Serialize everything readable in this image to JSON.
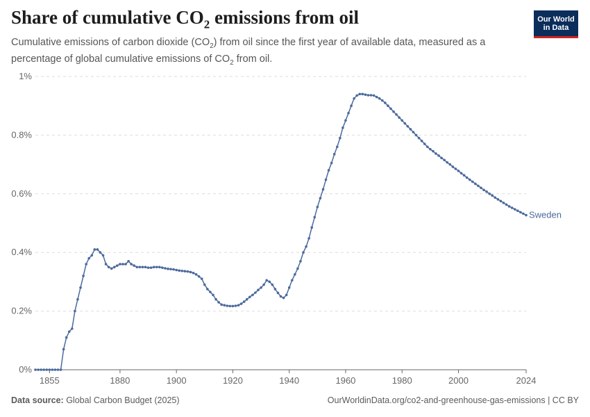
{
  "header": {
    "title_main": "Share of cumulative CO",
    "title_sub": "2",
    "title_end": " emissions from oil",
    "subtitle_a": "Cumulative emissions of carbon dioxide (CO",
    "subtitle_sub1": "2",
    "subtitle_b": ") from oil since the first year of available data, measured as a percentage of global cumulative emissions of CO",
    "subtitle_sub2": "2",
    "subtitle_c": " from oil."
  },
  "logo": {
    "line1": "Our World",
    "line2": "in Data"
  },
  "footer": {
    "source_label": "Data source:",
    "source_value": " Global Carbon Budget (2025)",
    "url": "OurWorldinData.org/co2-and-greenhouse-gas-emissions | CC BY"
  },
  "colors": {
    "series": "#4c6a9c",
    "grid": "#dddddd",
    "axis": "#666666",
    "text": "#666666"
  },
  "chart_data": {
    "type": "line",
    "xlim": [
      1850,
      2024
    ],
    "ylim": [
      0,
      1
    ],
    "x_ticks": [
      1855,
      1880,
      1900,
      1920,
      1940,
      1960,
      1980,
      2000,
      2024
    ],
    "y_ticks": [
      {
        "value": 0,
        "label": "0%"
      },
      {
        "value": 0.2,
        "label": "0.2%"
      },
      {
        "value": 0.4,
        "label": "0.4%"
      },
      {
        "value": 0.6,
        "label": "0.6%"
      },
      {
        "value": 0.8,
        "label": "0.8%"
      },
      {
        "value": 1,
        "label": "1%"
      }
    ],
    "grid": "horizontal dashed",
    "series": [
      {
        "name": "Sweden",
        "points": [
          [
            1850,
            0
          ],
          [
            1851,
            0
          ],
          [
            1852,
            0
          ],
          [
            1853,
            0
          ],
          [
            1854,
            0
          ],
          [
            1855,
            0
          ],
          [
            1856,
            0
          ],
          [
            1857,
            0
          ],
          [
            1858,
            0
          ],
          [
            1859,
            0
          ],
          [
            1860,
            0.07
          ],
          [
            1861,
            0.11
          ],
          [
            1862,
            0.13
          ],
          [
            1863,
            0.14
          ],
          [
            1864,
            0.2
          ],
          [
            1865,
            0.24
          ],
          [
            1866,
            0.28
          ],
          [
            1867,
            0.32
          ],
          [
            1868,
            0.36
          ],
          [
            1869,
            0.38
          ],
          [
            1870,
            0.39
          ],
          [
            1871,
            0.41
          ],
          [
            1872,
            0.41
          ],
          [
            1873,
            0.4
          ],
          [
            1874,
            0.39
          ],
          [
            1875,
            0.36
          ],
          [
            1876,
            0.35
          ],
          [
            1877,
            0.345
          ],
          [
            1878,
            0.35
          ],
          [
            1879,
            0.355
          ],
          [
            1880,
            0.36
          ],
          [
            1881,
            0.36
          ],
          [
            1882,
            0.36
          ],
          [
            1883,
            0.37
          ],
          [
            1884,
            0.36
          ],
          [
            1885,
            0.355
          ],
          [
            1886,
            0.35
          ],
          [
            1887,
            0.35
          ],
          [
            1888,
            0.35
          ],
          [
            1889,
            0.35
          ],
          [
            1890,
            0.348
          ],
          [
            1891,
            0.348
          ],
          [
            1892,
            0.35
          ],
          [
            1893,
            0.35
          ],
          [
            1894,
            0.35
          ],
          [
            1895,
            0.348
          ],
          [
            1896,
            0.346
          ],
          [
            1897,
            0.344
          ],
          [
            1898,
            0.343
          ],
          [
            1899,
            0.342
          ],
          [
            1900,
            0.34
          ],
          [
            1901,
            0.338
          ],
          [
            1902,
            0.337
          ],
          [
            1903,
            0.336
          ],
          [
            1904,
            0.335
          ],
          [
            1905,
            0.333
          ],
          [
            1906,
            0.33
          ],
          [
            1907,
            0.325
          ],
          [
            1908,
            0.318
          ],
          [
            1909,
            0.31
          ],
          [
            1910,
            0.29
          ],
          [
            1911,
            0.275
          ],
          [
            1912,
            0.265
          ],
          [
            1913,
            0.255
          ],
          [
            1914,
            0.24
          ],
          [
            1915,
            0.23
          ],
          [
            1916,
            0.222
          ],
          [
            1917,
            0.22
          ],
          [
            1918,
            0.218
          ],
          [
            1919,
            0.217
          ],
          [
            1920,
            0.217
          ],
          [
            1921,
            0.218
          ],
          [
            1922,
            0.22
          ],
          [
            1923,
            0.225
          ],
          [
            1924,
            0.232
          ],
          [
            1925,
            0.24
          ],
          [
            1926,
            0.248
          ],
          [
            1927,
            0.255
          ],
          [
            1928,
            0.263
          ],
          [
            1929,
            0.272
          ],
          [
            1930,
            0.28
          ],
          [
            1931,
            0.29
          ],
          [
            1932,
            0.305
          ],
          [
            1933,
            0.3
          ],
          [
            1934,
            0.29
          ],
          [
            1935,
            0.275
          ],
          [
            1936,
            0.262
          ],
          [
            1937,
            0.25
          ],
          [
            1938,
            0.245
          ],
          [
            1939,
            0.255
          ],
          [
            1940,
            0.28
          ],
          [
            1941,
            0.305
          ],
          [
            1942,
            0.325
          ],
          [
            1943,
            0.345
          ],
          [
            1944,
            0.37
          ],
          [
            1945,
            0.4
          ],
          [
            1946,
            0.42
          ],
          [
            1947,
            0.448
          ],
          [
            1948,
            0.485
          ],
          [
            1949,
            0.52
          ],
          [
            1950,
            0.555
          ],
          [
            1951,
            0.585
          ],
          [
            1952,
            0.615
          ],
          [
            1953,
            0.648
          ],
          [
            1954,
            0.68
          ],
          [
            1955,
            0.705
          ],
          [
            1956,
            0.735
          ],
          [
            1957,
            0.76
          ],
          [
            1958,
            0.79
          ],
          [
            1959,
            0.825
          ],
          [
            1960,
            0.85
          ],
          [
            1961,
            0.875
          ],
          [
            1962,
            0.9
          ],
          [
            1963,
            0.925
          ],
          [
            1964,
            0.935
          ],
          [
            1965,
            0.94
          ],
          [
            1966,
            0.94
          ],
          [
            1967,
            0.938
          ],
          [
            1968,
            0.936
          ],
          [
            1969,
            0.936
          ],
          [
            1970,
            0.935
          ],
          [
            1971,
            0.93
          ],
          [
            1972,
            0.925
          ],
          [
            1973,
            0.918
          ],
          [
            1974,
            0.91
          ],
          [
            1975,
            0.9
          ],
          [
            1976,
            0.89
          ],
          [
            1977,
            0.88
          ],
          [
            1978,
            0.87
          ],
          [
            1979,
            0.86
          ],
          [
            1980,
            0.85
          ],
          [
            1981,
            0.84
          ],
          [
            1982,
            0.83
          ],
          [
            1983,
            0.82
          ],
          [
            1984,
            0.81
          ],
          [
            1985,
            0.8
          ],
          [
            1986,
            0.79
          ],
          [
            1987,
            0.78
          ],
          [
            1988,
            0.77
          ],
          [
            1989,
            0.76
          ],
          [
            1990,
            0.752
          ],
          [
            1991,
            0.745
          ],
          [
            1992,
            0.737
          ],
          [
            1993,
            0.73
          ],
          [
            1994,
            0.722
          ],
          [
            1995,
            0.715
          ],
          [
            1996,
            0.707
          ],
          [
            1997,
            0.7
          ],
          [
            1998,
            0.692
          ],
          [
            1999,
            0.685
          ],
          [
            2000,
            0.678
          ],
          [
            2001,
            0.67
          ],
          [
            2002,
            0.663
          ],
          [
            2003,
            0.655
          ],
          [
            2004,
            0.648
          ],
          [
            2005,
            0.641
          ],
          [
            2006,
            0.634
          ],
          [
            2007,
            0.627
          ],
          [
            2008,
            0.62
          ],
          [
            2009,
            0.613
          ],
          [
            2010,
            0.607
          ],
          [
            2011,
            0.6
          ],
          [
            2012,
            0.594
          ],
          [
            2013,
            0.587
          ],
          [
            2014,
            0.581
          ],
          [
            2015,
            0.575
          ],
          [
            2016,
            0.569
          ],
          [
            2017,
            0.563
          ],
          [
            2018,
            0.557
          ],
          [
            2019,
            0.552
          ],
          [
            2020,
            0.547
          ],
          [
            2021,
            0.542
          ],
          [
            2022,
            0.537
          ],
          [
            2023,
            0.532
          ],
          [
            2024,
            0.527
          ]
        ]
      }
    ]
  }
}
